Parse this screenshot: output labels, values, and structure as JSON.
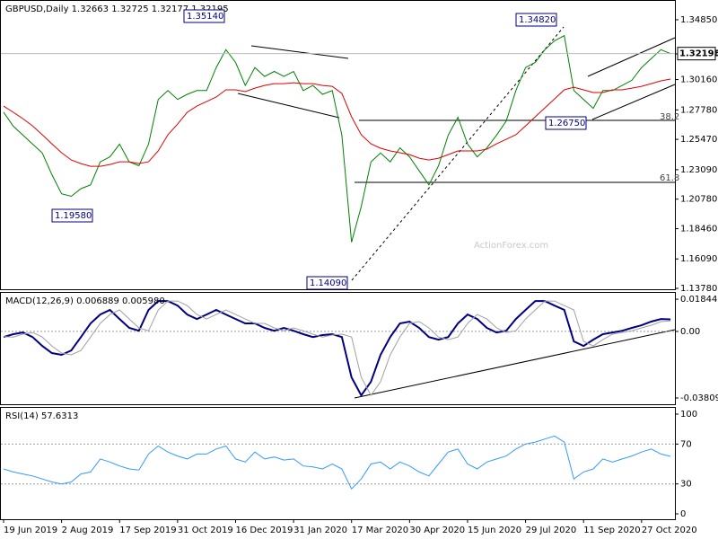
{
  "chart_data": [
    {
      "type": "line",
      "title": "GBPUSD,Daily 1.32663 1.32725 1.32177 1.32195",
      "ylim": [
        1.1371,
        1.364
      ],
      "yticks": [
        {
          "value": 1.3485,
          "label": "1.34850"
        },
        {
          "value": 1.3217,
          "label": "1.32170"
        },
        {
          "value": 1.3016,
          "label": "1.30160"
        },
        {
          "value": 1.2778,
          "label": "1.27780"
        },
        {
          "value": 1.2547,
          "label": "1.25470"
        },
        {
          "value": 1.2309,
          "label": "1.23090"
        },
        {
          "value": 1.2078,
          "label": "1.20780"
        },
        {
          "value": 1.1846,
          "label": "1.18460"
        },
        {
          "value": 1.1609,
          "label": "1.16090"
        },
        {
          "value": 1.1378,
          "label": "1.13780"
        }
      ],
      "series": [
        {
          "color": "#008000",
          "values": [
            1.276,
            1.265,
            1.258,
            1.251,
            1.244,
            1.227,
            1.212,
            1.21,
            1.216,
            1.219,
            1.237,
            1.241,
            1.251,
            1.237,
            1.234,
            1.251,
            1.286,
            1.293,
            1.286,
            1.29,
            1.293,
            1.293,
            1.311,
            1.325,
            1.315,
            1.297,
            1.311,
            1.304,
            1.308,
            1.304,
            1.308,
            1.293,
            1.297,
            1.29,
            1.293,
            1.258,
            1.174,
            1.202,
            1.237,
            1.244,
            1.237,
            1.248,
            1.241,
            1.23,
            1.219,
            1.234,
            1.258,
            1.272,
            1.251,
            1.241,
            1.248,
            1.258,
            1.269,
            1.293,
            1.311,
            1.315,
            1.325,
            1.332,
            1.336,
            1.293,
            1.286,
            1.279,
            1.293,
            1.293,
            1.297,
            1.301,
            1.311,
            1.318,
            1.325,
            1.32195
          ]
        },
        {
          "color": "#e00000",
          "values": [
            1.2808,
            1.2759,
            1.2709,
            1.2653,
            1.2583,
            1.2512,
            1.2442,
            1.2385,
            1.2357,
            1.2336,
            1.2336,
            1.235,
            1.2371,
            1.2371,
            1.2357,
            1.2371,
            1.2456,
            1.2583,
            1.2667,
            1.2759,
            1.2808,
            1.2843,
            1.2879,
            1.2935,
            1.2935,
            1.2921,
            1.2949,
            1.297,
            1.2984,
            1.2984,
            1.2991,
            1.2984,
            1.2984,
            1.297,
            1.2963,
            1.2907,
            1.2724,
            1.2583,
            1.2512,
            1.2477,
            1.2456,
            1.2442,
            1.2427,
            1.2399,
            1.2385,
            1.2399,
            1.2427,
            1.2456,
            1.2456,
            1.2456,
            1.247,
            1.2512,
            1.2547,
            1.2583,
            1.2653,
            1.2724,
            1.2794,
            1.2864,
            1.2935,
            1.2956,
            1.2935,
            1.2914,
            1.2914,
            1.2935,
            1.2935,
            1.2949,
            1.2963,
            1.2984,
            1.3006,
            1.302
          ]
        }
      ],
      "annotations": [
        "1.35140",
        "1.34820",
        "1.32195",
        "1.26750",
        "1.19580",
        "1.14090",
        "38.2",
        "61.8",
        "ActionForex.com"
      ]
    },
    {
      "type": "line",
      "title": "MACD(12,26,9) 0.006889 0.005980",
      "ylim": [
        -0.0417,
        0.0226
      ],
      "yticks": [
        0.018442,
        {
          "value": 0,
          "label": "0.00"
        },
        -0.038095
      ],
      "series": [
        {
          "color": "#000080",
          "values": [
            -0.0032,
            -0.0016,
            -0.0006,
            -0.0032,
            -0.0083,
            -0.0124,
            -0.0134,
            -0.0109,
            -0.0032,
            0.0046,
            0.0097,
            0.0123,
            0.0071,
            0.002,
            0.0004,
            0.0123,
            0.0174,
            0.0174,
            0.0148,
            0.0097,
            0.0071,
            0.0097,
            0.0123,
            0.0097,
            0.0071,
            0.0046,
            0.0046,
            0.002,
            0.0004,
            0.002,
            0.0004,
            -0.0016,
            -0.0032,
            -0.0021,
            -0.0016,
            -0.0032,
            -0.0263,
            -0.0366,
            -0.0288,
            -0.0134,
            -0.0032,
            0.0046,
            0.0056,
            0.002,
            -0.0032,
            -0.0047,
            -0.0032,
            0.0046,
            0.0097,
            0.0071,
            0.002,
            -0.0006,
            0.0004,
            0.0071,
            0.0123,
            0.0174,
            0.0174,
            0.0148,
            0.0123,
            -0.0057,
            -0.0083,
            -0.0047,
            -0.0016,
            -0.0006,
            0.0004,
            0.002,
            0.0035,
            0.0056,
            0.0071,
            0.0069
          ]
        },
        {
          "color": "#a0a0a0",
          "values": [
            -0.003,
            -0.0032,
            -0.0016,
            -0.0006,
            -0.0032,
            -0.0083,
            -0.0124,
            -0.0134,
            -0.0109,
            -0.0032,
            0.0046,
            0.0097,
            0.0123,
            0.0071,
            0.002,
            0.0004,
            0.0123,
            0.0174,
            0.0174,
            0.0148,
            0.0097,
            0.0071,
            0.0097,
            0.0123,
            0.0097,
            0.0071,
            0.0046,
            0.0046,
            0.002,
            0.0004,
            0.002,
            0.0004,
            -0.0016,
            -0.0032,
            -0.0021,
            -0.0016,
            -0.0032,
            -0.0263,
            -0.0366,
            -0.0288,
            -0.0134,
            -0.0032,
            0.0046,
            0.0056,
            0.002,
            -0.0032,
            -0.0047,
            -0.0032,
            0.0046,
            0.0097,
            0.0071,
            0.002,
            -0.0006,
            0.0004,
            0.0071,
            0.0123,
            0.0174,
            0.0174,
            0.0148,
            0.0123,
            -0.0057,
            -0.0083,
            -0.0047,
            -0.0016,
            -0.0006,
            0.0004,
            0.002,
            0.0035,
            0.0056,
            0.006
          ]
        }
      ]
    },
    {
      "type": "line",
      "title": "RSI(14) 57.6313",
      "ylim": [
        -5.4,
        107.2
      ],
      "yticks": [
        100,
        70,
        30,
        0
      ],
      "categories": [
        "19 Jun 2019",
        null,
        null,
        null,
        null,
        null,
        "2 Aug 2019",
        null,
        null,
        null,
        null,
        null,
        "17 Sep 2019",
        null,
        null,
        null,
        null,
        null,
        "31 Oct 2019",
        null,
        null,
        null,
        null,
        null,
        "16 Dec 2019",
        null,
        null,
        null,
        null,
        null,
        "31 Jan 2020",
        null,
        null,
        null,
        null,
        null,
        "17 Mar 2020",
        null,
        null,
        null,
        null,
        null,
        "30 Apr 2020",
        null,
        null,
        null,
        null,
        null,
        "15 Jun 2020",
        null,
        null,
        null,
        null,
        null,
        "29 Jul 2020",
        null,
        null,
        null,
        null,
        null,
        "11 Sep 2020",
        null,
        null,
        null,
        null,
        null,
        "27 Oct 2020",
        null,
        null,
        null
      ],
      "series": [
        {
          "color": "#3399ff",
          "values": [
            45,
            42,
            40,
            38,
            35,
            32,
            30,
            32,
            40,
            42,
            55,
            52,
            48,
            45,
            44,
            60,
            68,
            62,
            58,
            55,
            60,
            60,
            65,
            68,
            55,
            52,
            62,
            55,
            57,
            54,
            55,
            48,
            47,
            45,
            50,
            45,
            25,
            35,
            50,
            52,
            45,
            52,
            48,
            42,
            38,
            50,
            62,
            65,
            50,
            45,
            52,
            55,
            58,
            65,
            70,
            72,
            75,
            78,
            72,
            35,
            42,
            45,
            55,
            52,
            55,
            58,
            62,
            65,
            60,
            57.6313
          ]
        }
      ]
    }
  ]
}
